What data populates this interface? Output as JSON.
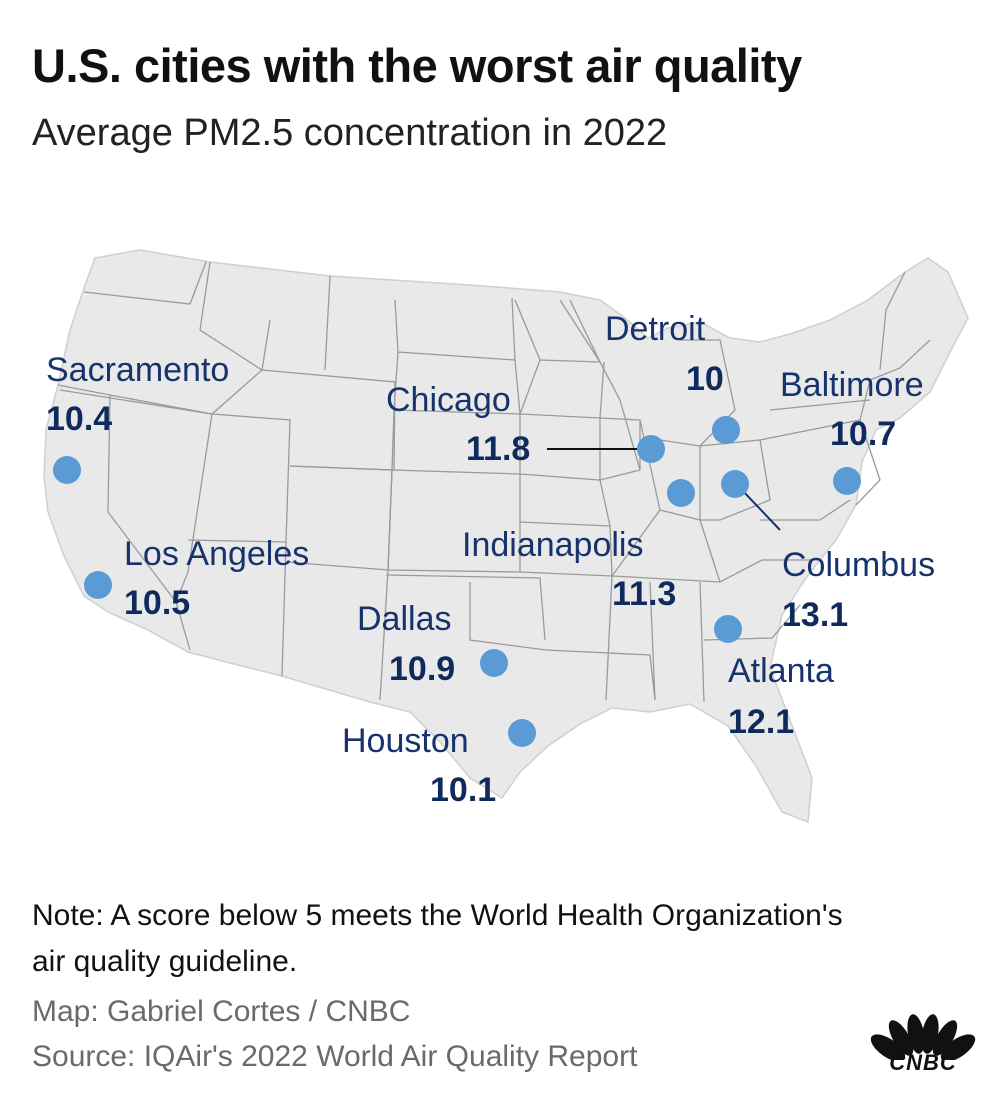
{
  "header": {
    "title": "U.S. cities with the worst air quality",
    "subtitle": "Average PM2.5 concentration in 2022"
  },
  "colors": {
    "land": "#e9e9e9",
    "border": "#9a9a9a",
    "marker": "#5b9bd5",
    "label_name": "#16336b",
    "label_value": "#0f2a5c"
  },
  "cities": [
    {
      "name": "Sacramento",
      "value": "10.4"
    },
    {
      "name": "Los Angeles",
      "value": "10.5"
    },
    {
      "name": "Dallas",
      "value": "10.9"
    },
    {
      "name": "Houston",
      "value": "10.1"
    },
    {
      "name": "Chicago",
      "value": "11.8"
    },
    {
      "name": "Indianapolis",
      "value": "11.3"
    },
    {
      "name": "Detroit",
      "value": "10"
    },
    {
      "name": "Columbus",
      "value": "13.1"
    },
    {
      "name": "Baltimore",
      "value": "10.7"
    },
    {
      "name": "Atlanta",
      "value": "12.1"
    }
  ],
  "footer": {
    "note": "Note: A score below 5 meets the World Health Organization's air quality guideline.",
    "map_credit": "Map: Gabriel Cortes / CNBC",
    "source": "Source: IQAir's 2022 World Air Quality Report",
    "logo_text": "CNBC"
  }
}
